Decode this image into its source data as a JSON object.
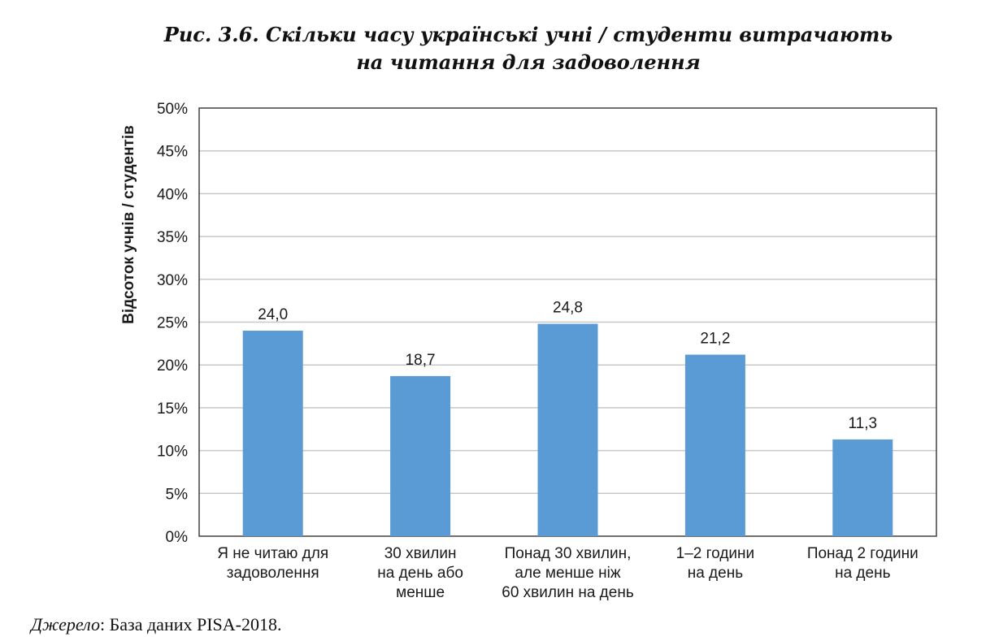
{
  "figure": {
    "title_line1": "Рис. 3.6. Скільки часу українські учні / студенти витрачають",
    "title_line2": "на читання для задоволення",
    "source_label": "Джерело",
    "source_text": ": База даних PISA-2018."
  },
  "chart_data": {
    "type": "bar",
    "title": "Рис. 3.6. Скільки часу українські учні / студенти витрачають на читання для задоволення",
    "ylabel": "Відсоток учнів / студентів",
    "xlabel": "",
    "ylim": [
      0,
      50
    ],
    "yticks": [
      "0%",
      "5%",
      "10%",
      "15%",
      "20%",
      "25%",
      "30%",
      "35%",
      "40%",
      "45%",
      "50%"
    ],
    "categories": [
      [
        "Я не читаю для",
        "задоволення"
      ],
      [
        "30 хвилин",
        "на день або",
        "менше"
      ],
      [
        "Понад 30 хвилин,",
        "але менше ніж",
        "60 хвилин  на день"
      ],
      [
        "1–2 години",
        "на день"
      ],
      [
        "Понад 2 години",
        "на день"
      ]
    ],
    "values": [
      24.0,
      18.7,
      24.8,
      21.2,
      11.3
    ],
    "value_labels": [
      "24,0",
      "18,7",
      "24,8",
      "21,2",
      "11,3"
    ],
    "grid": true,
    "legend": "none",
    "colors": {
      "bar": "#5B9BD5",
      "grid": "#c8c8c8",
      "axis": "#404040"
    }
  }
}
